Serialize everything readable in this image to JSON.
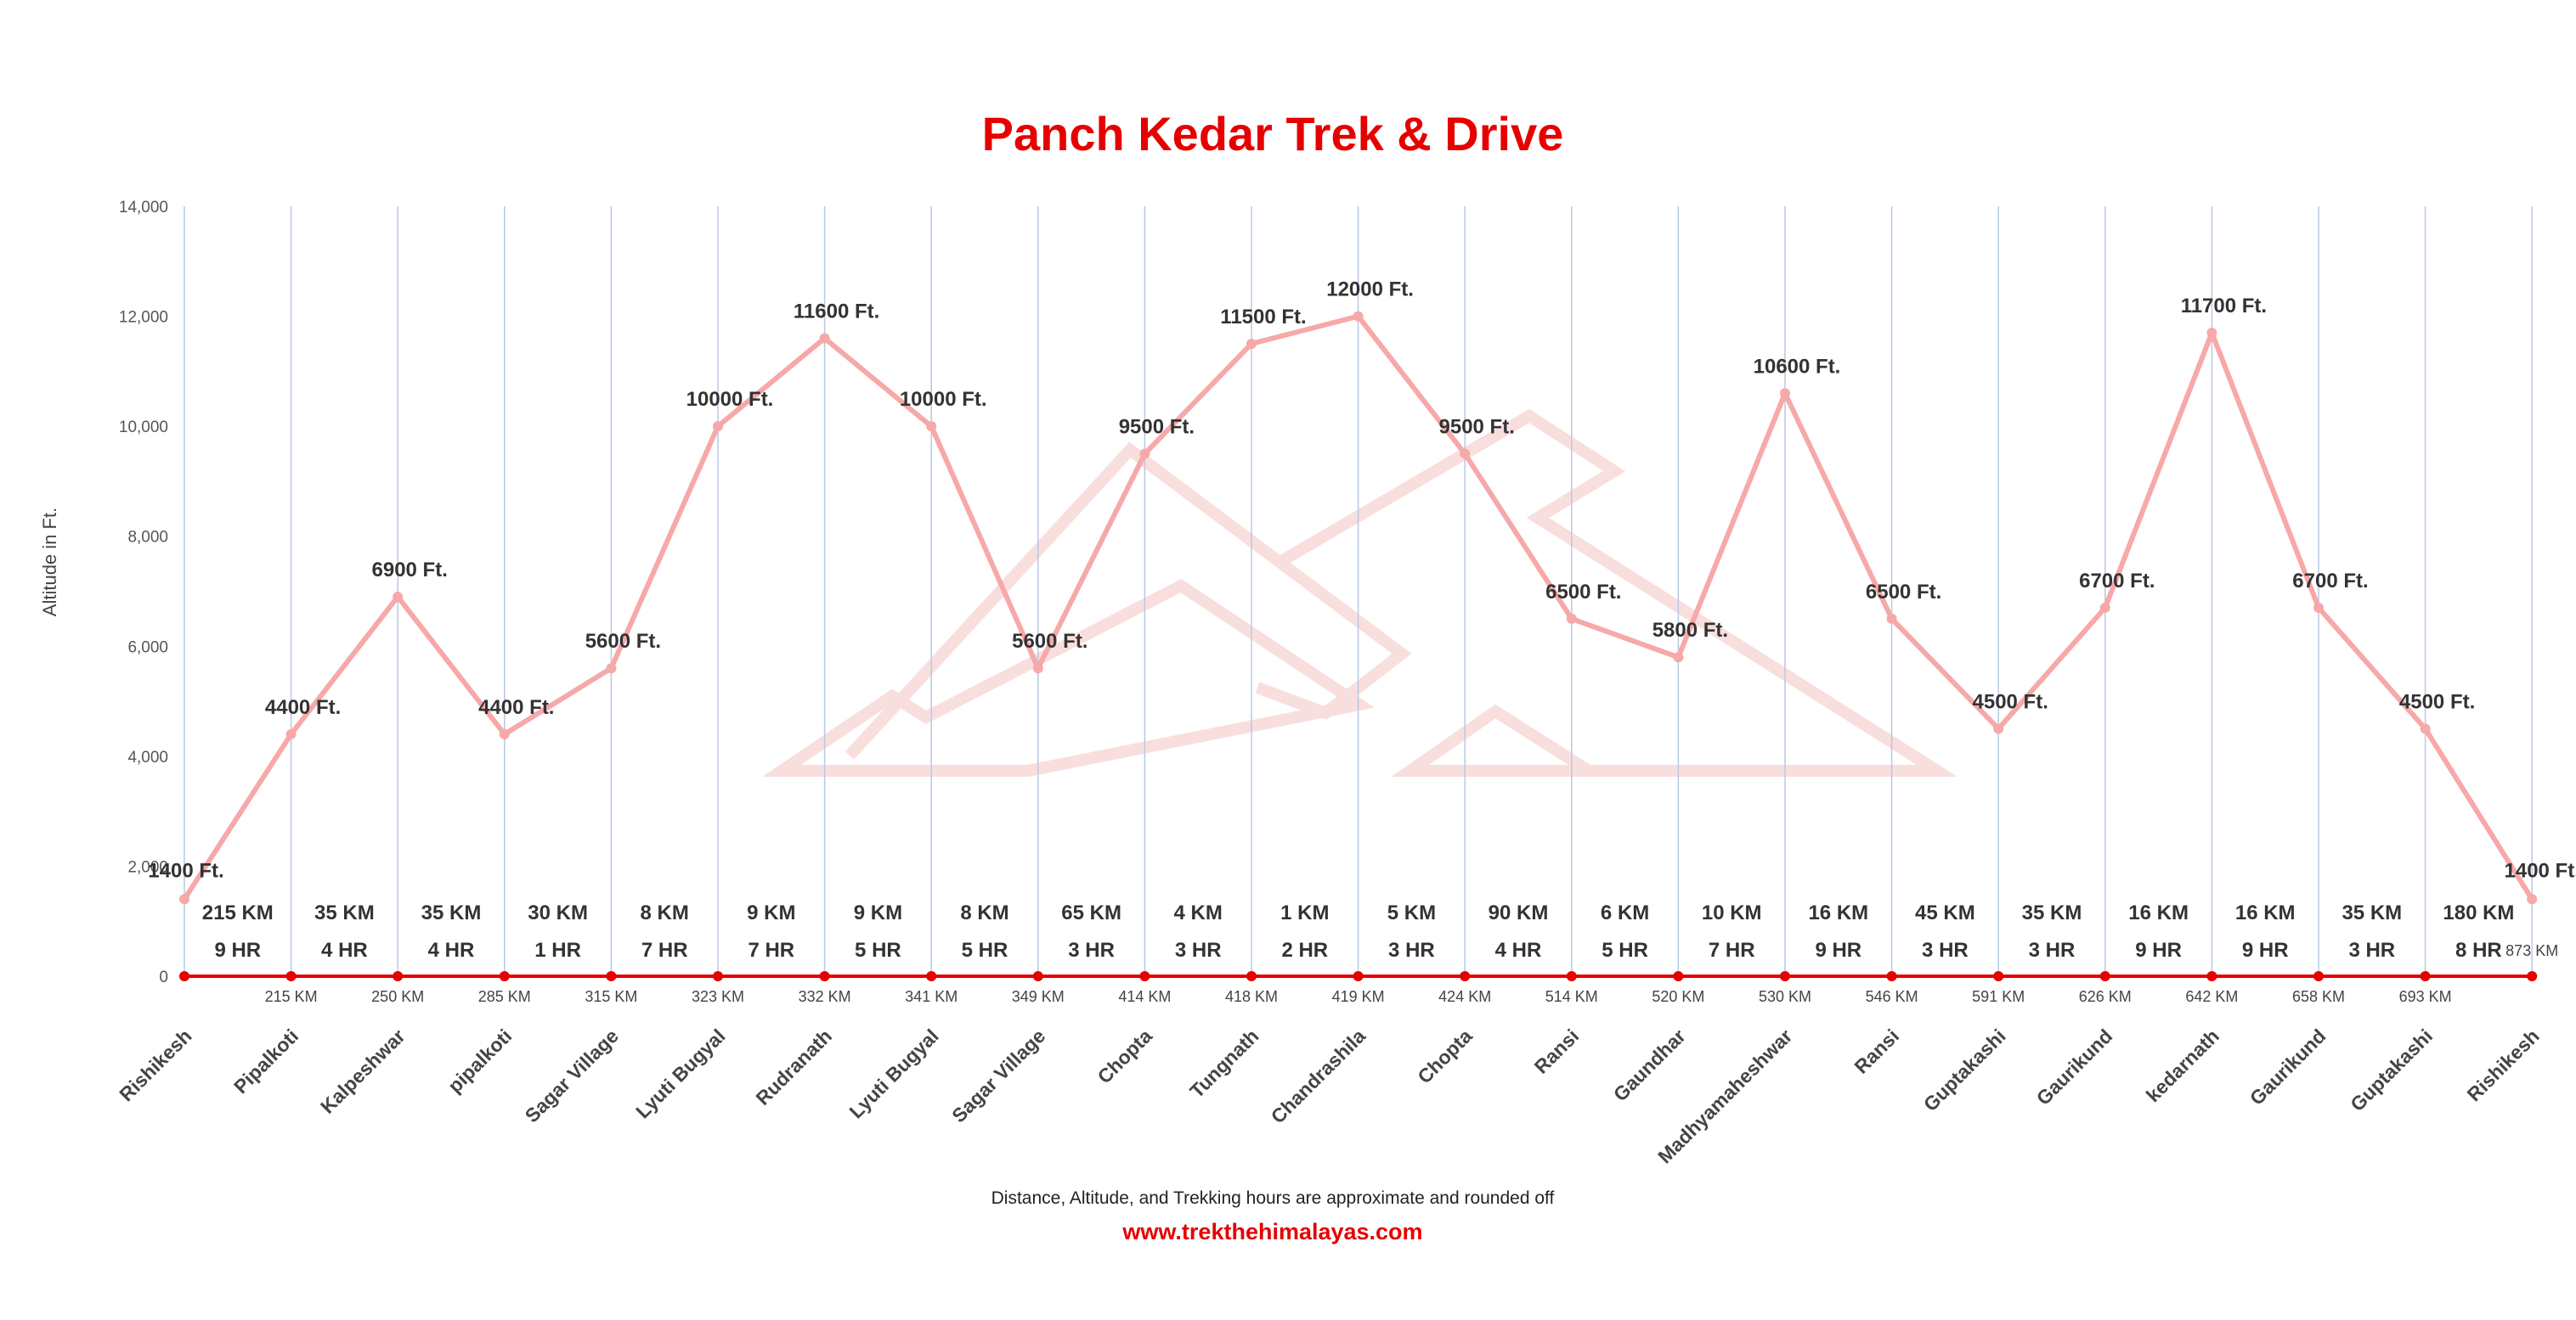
{
  "chart_data": {
    "type": "line",
    "title": "Panch Kedar Trek & Drive",
    "ylabel": "Altitude in Ft.",
    "ylim": [
      0,
      14000
    ],
    "yticks": [
      "0",
      "2,000",
      "4,000",
      "6,000",
      "8,000",
      "10,000",
      "12,000",
      "14,000"
    ],
    "grid": false,
    "categories": [
      "Rishikesh",
      "Pipalkoti",
      "Kalpeshwar",
      "pipalkoti",
      "Sagar Village",
      "Lyuti Bugyal",
      "Rudranath",
      "Lyuti Bugyal",
      "Sagar Village",
      "Chopta",
      "Tungnath",
      "Chandrashila",
      "Chopta",
      "Ransi",
      "Gaundhar",
      "Madhyamaheshwar",
      "Ransi",
      "Guptakashi",
      "Gaurikund",
      "kedarnath",
      "Gaurikund",
      "Guptakashi",
      "Rishikesh"
    ],
    "series": [
      {
        "values": [
          1400,
          4400,
          6900,
          4400,
          5600,
          10000,
          11600,
          10000,
          5600,
          9500,
          11500,
          12000,
          9500,
          6500,
          5800,
          10600,
          6500,
          4500,
          6700,
          11700,
          6700,
          4500,
          1400
        ],
        "labels": [
          "1400 Ft.",
          "4400 Ft.",
          "6900 Ft.",
          "4400 Ft.",
          "5600 Ft.",
          "10000 Ft.",
          "11600 Ft.",
          "10000 Ft.",
          "5600 Ft.",
          "9500 Ft.",
          "11500 Ft.",
          "12000 Ft.",
          "9500 Ft.",
          "6500 Ft.",
          "5800 Ft.",
          "10600 Ft.",
          "6500 Ft.",
          "4500 Ft.",
          "6700 Ft.",
          "11700 Ft.",
          "6700 Ft.",
          "4500 Ft.",
          "1400 Ft."
        ],
        "color": "#f7a8a8"
      }
    ],
    "baseline_color": "#e60000",
    "segments": [
      {
        "distance": "215 KM",
        "time": "9 HR"
      },
      {
        "distance": "35 KM",
        "time": "4 HR"
      },
      {
        "distance": "35 KM",
        "time": "4 HR"
      },
      {
        "distance": "30 KM",
        "time": "1 HR"
      },
      {
        "distance": "8 KM",
        "time": "7 HR"
      },
      {
        "distance": "9 KM",
        "time": "7 HR"
      },
      {
        "distance": "9 KM",
        "time": "5 HR"
      },
      {
        "distance": "8 KM",
        "time": "5 HR"
      },
      {
        "distance": "65 KM",
        "time": "3 HR"
      },
      {
        "distance": "4 KM",
        "time": "3 HR"
      },
      {
        "distance": "1 KM",
        "time": "2 HR"
      },
      {
        "distance": "5 KM",
        "time": "3 HR"
      },
      {
        "distance": "90 KM",
        "time": "4 HR"
      },
      {
        "distance": "6 KM",
        "time": "5 HR"
      },
      {
        "distance": "10 KM",
        "time": "7 HR"
      },
      {
        "distance": "16 KM",
        "time": "9 HR"
      },
      {
        "distance": "45 KM",
        "time": "3 HR"
      },
      {
        "distance": "35 KM",
        "time": "3 HR"
      },
      {
        "distance": "16 KM",
        "time": "9 HR"
      },
      {
        "distance": "16 KM",
        "time": "9 HR"
      },
      {
        "distance": "35 KM",
        "time": "3 HR"
      },
      {
        "distance": "180 KM",
        "time": "8 HR"
      }
    ],
    "cumulative": [
      "215 KM",
      "250 KM",
      "285 KM",
      "315 KM",
      "323 KM",
      "332 KM",
      "341 KM",
      "349 KM",
      "414 KM",
      "418 KM",
      "419 KM",
      "424 KM",
      "514 KM",
      "520 KM",
      "530 KM",
      "546 KM",
      "591 KM",
      "626 KM",
      "642 KM",
      "658 KM",
      "693 KM",
      "873 KM"
    ]
  },
  "footer": {
    "note": "Distance, Altitude, and Trekking hours are approximate and rounded off",
    "website": "www.trekthehimalayas.com"
  },
  "colors": {
    "title": "#e60000",
    "website": "#e60000",
    "line": "#f7a8a8",
    "vertical_lines": "#b8c8e4",
    "watermark": "#f9dede"
  }
}
